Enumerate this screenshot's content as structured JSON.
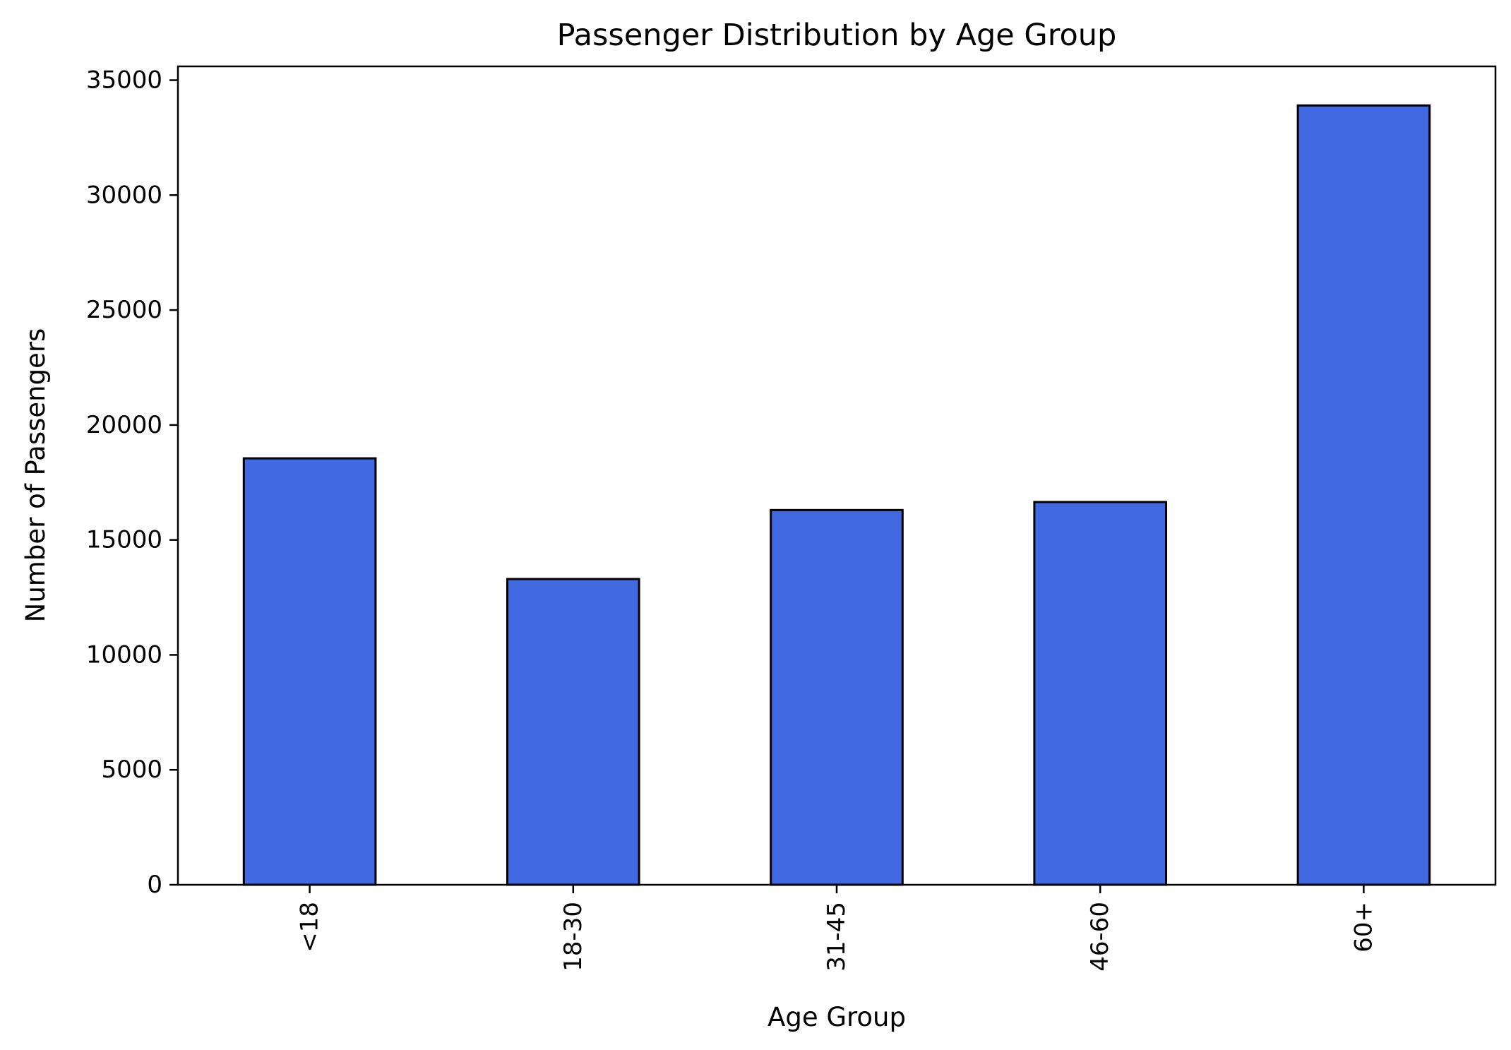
{
  "chart_data": {
    "type": "bar",
    "title": "Passenger Distribution by Age Group",
    "xlabel": "Age Group",
    "ylabel": "Number of Passengers",
    "categories": [
      "<18",
      "18-30",
      "31-45",
      "46-60",
      "60+"
    ],
    "values": [
      18550,
      13300,
      16300,
      16650,
      33900
    ],
    "ylim": [
      0,
      35600
    ],
    "yticks": [
      0,
      5000,
      10000,
      15000,
      20000,
      25000,
      30000,
      35000
    ],
    "ytick_labels": [
      "0",
      "5000",
      "10000",
      "15000",
      "20000",
      "25000",
      "30000",
      "35000"
    ],
    "xtick_rotation": "vertical",
    "grid": false,
    "legend": "none",
    "colors": {
      "bar_fill": "#4169E1",
      "bar_edge": "#000000"
    }
  }
}
